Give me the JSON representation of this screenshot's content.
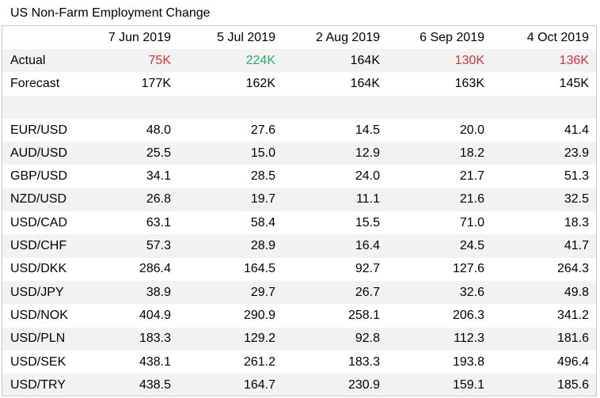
{
  "title": "US Non-Farm Employment Change",
  "columns": [
    "7 Jun 2019",
    "5 Jul 2019",
    "2 Aug 2019",
    "6 Sep 2019",
    "4 Oct 2019"
  ],
  "colors": {
    "negative": "#e03030",
    "positive": "#2eaa6e",
    "stripe": "#f2f2f2",
    "border": "#c8c8c8"
  },
  "actual": {
    "label": "Actual",
    "values": [
      "75K",
      "224K",
      "164K",
      "130K",
      "136K"
    ],
    "status": [
      "negative",
      "positive",
      "neutral",
      "negative",
      "negative"
    ]
  },
  "forecast": {
    "label": "Forecast",
    "values": [
      "177K",
      "162K",
      "164K",
      "163K",
      "145K"
    ]
  },
  "pairs": [
    {
      "pair": "EUR/USD",
      "values": [
        "48.0",
        "27.6",
        "14.5",
        "20.0",
        "41.4"
      ]
    },
    {
      "pair": "AUD/USD",
      "values": [
        "25.5",
        "15.0",
        "12.9",
        "18.2",
        "23.9"
      ]
    },
    {
      "pair": "GBP/USD",
      "values": [
        "34.1",
        "28.5",
        "24.0",
        "21.7",
        "51.3"
      ]
    },
    {
      "pair": "NZD/USD",
      "values": [
        "26.8",
        "19.7",
        "11.1",
        "21.6",
        "32.5"
      ]
    },
    {
      "pair": "USD/CAD",
      "values": [
        "63.1",
        "58.4",
        "15.5",
        "71.0",
        "18.3"
      ]
    },
    {
      "pair": "USD/CHF",
      "values": [
        "57.3",
        "28.9",
        "16.4",
        "24.5",
        "41.7"
      ]
    },
    {
      "pair": "USD/DKK",
      "values": [
        "286.4",
        "164.5",
        "92.7",
        "127.6",
        "264.3"
      ]
    },
    {
      "pair": "USD/JPY",
      "values": [
        "38.9",
        "29.7",
        "26.7",
        "32.6",
        "49.8"
      ]
    },
    {
      "pair": "USD/NOK",
      "values": [
        "404.9",
        "290.9",
        "258.1",
        "206.3",
        "341.2"
      ]
    },
    {
      "pair": "USD/PLN",
      "values": [
        "183.3",
        "129.2",
        "92.8",
        "112.3",
        "181.6"
      ]
    },
    {
      "pair": "USD/SEK",
      "values": [
        "438.1",
        "261.2",
        "183.3",
        "193.8",
        "496.4"
      ]
    },
    {
      "pair": "USD/TRY",
      "values": [
        "438.5",
        "164.7",
        "230.9",
        "159.1",
        "185.6"
      ]
    }
  ]
}
